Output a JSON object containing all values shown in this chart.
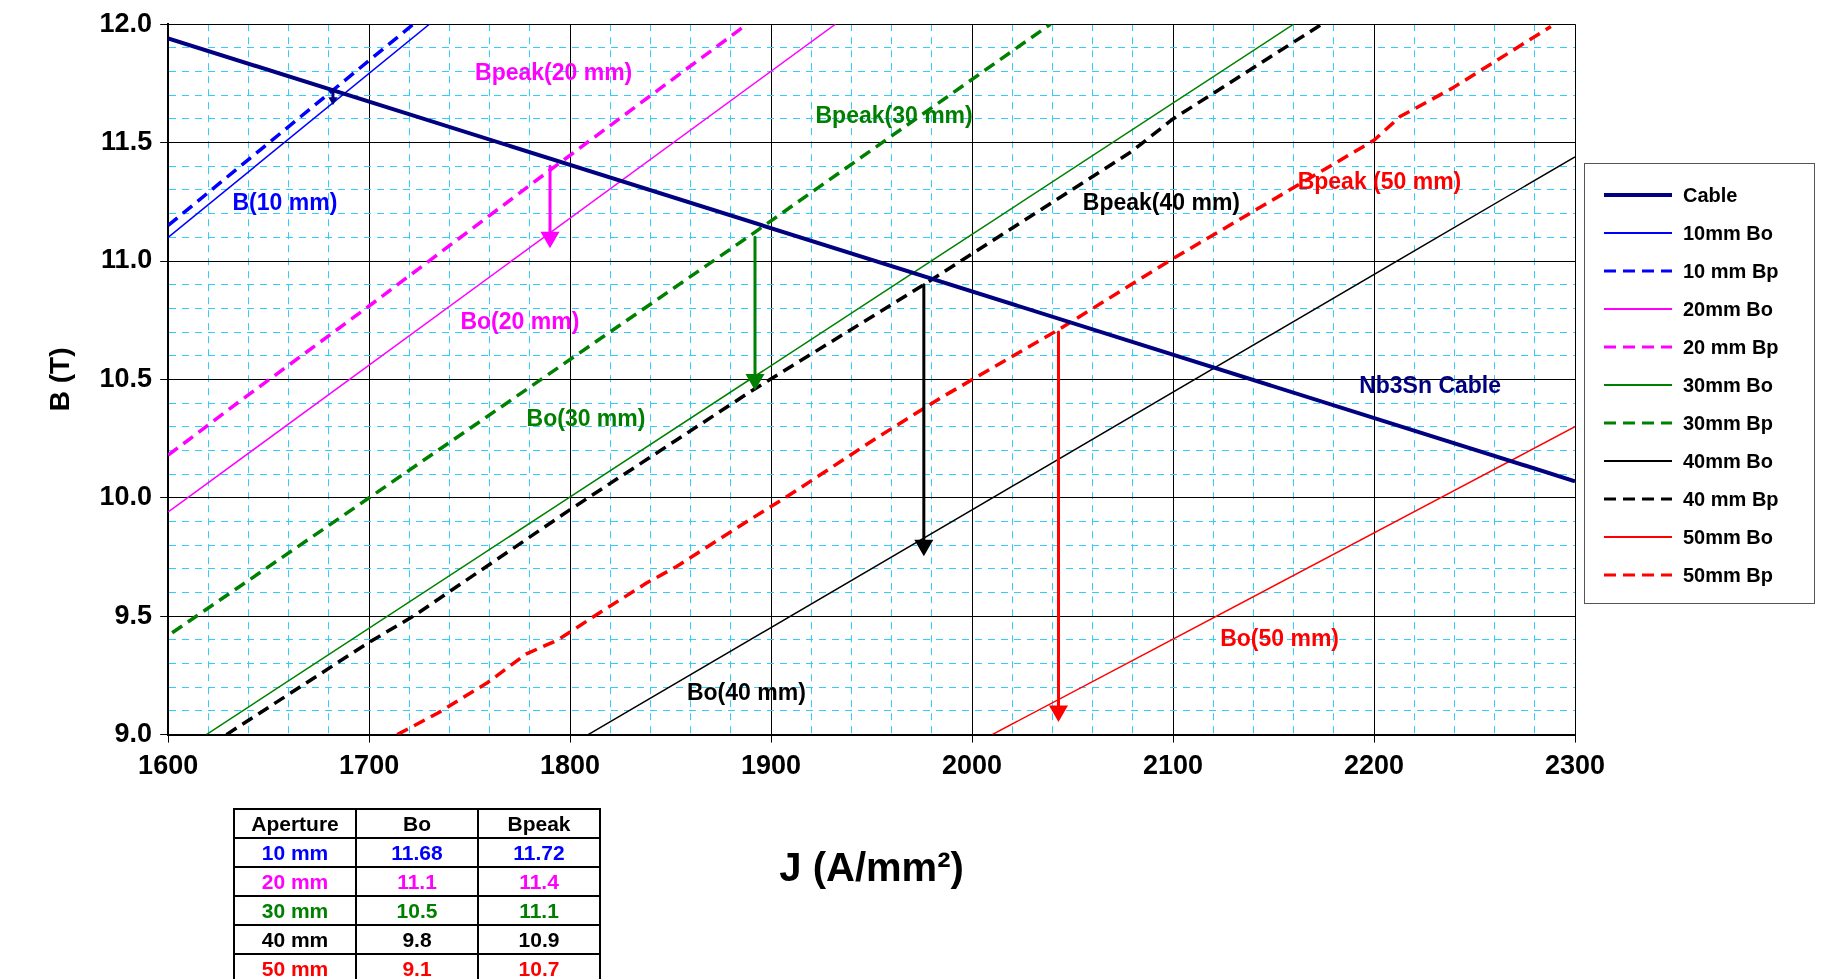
{
  "chart_data": {
    "type": "line",
    "xlabel": "J (A/mm²)",
    "ylabel": "B (T)",
    "legend": "right",
    "grid": true,
    "xlim": [
      1600,
      2300
    ],
    "xticks": [
      1600,
      {
        "value": 1620,
        "label": null
      },
      {
        "value": 1640,
        "label": null
      },
      {
        "value": 1660,
        "label": null
      },
      {
        "value": 1680,
        "label": null
      },
      1700,
      {
        "value": 1720,
        "label": null
      },
      {
        "value": 1740,
        "label": null
      },
      {
        "value": 1760,
        "label": null
      },
      {
        "value": 1780,
        "label": null
      },
      1800,
      {
        "value": 1820,
        "label": null
      },
      {
        "value": 1840,
        "label": null
      },
      {
        "value": 1860,
        "label": null
      },
      {
        "value": 1880,
        "label": null
      },
      1900,
      {
        "value": 1920,
        "label": null
      },
      {
        "value": 1940,
        "label": null
      },
      {
        "value": 1960,
        "label": null
      },
      {
        "value": 1980,
        "label": null
      },
      2000,
      {
        "value": 2020,
        "label": null
      },
      {
        "value": 2040,
        "label": null
      },
      {
        "value": 2060,
        "label": null
      },
      {
        "value": 2080,
        "label": null
      },
      2100,
      {
        "value": 2120,
        "label": null
      },
      {
        "value": 2140,
        "label": null
      },
      {
        "value": 2160,
        "label": null
      },
      {
        "value": 2180,
        "label": null
      },
      2200,
      {
        "value": 2220,
        "label": null
      },
      {
        "value": 2240,
        "label": null
      },
      {
        "value": 2260,
        "label": null
      },
      {
        "value": 2280,
        "label": null
      },
      2300
    ],
    "ylim": [
      9,
      12
    ],
    "yticks": [
      {
        "value": 9,
        "label": "9.0"
      },
      {
        "value": 9.1,
        "label": null
      },
      {
        "value": 9.2,
        "label": null
      },
      {
        "value": 9.3,
        "label": null
      },
      {
        "value": 9.4,
        "label": null
      },
      {
        "value": 9.5,
        "label": "9.5"
      },
      {
        "value": 9.6,
        "label": null
      },
      {
        "value": 9.7,
        "label": null
      },
      {
        "value": 9.8,
        "label": null
      },
      {
        "value": 9.9,
        "label": null
      },
      {
        "value": 10,
        "label": "10.0"
      },
      {
        "value": 10.1,
        "label": null
      },
      {
        "value": 10.2,
        "label": null
      },
      {
        "value": 10.3,
        "label": null
      },
      {
        "value": 10.4,
        "label": null
      },
      {
        "value": 10.5,
        "label": "10.5"
      },
      {
        "value": 10.6,
        "label": null
      },
      {
        "value": 10.7,
        "label": null
      },
      {
        "value": 10.8,
        "label": null
      },
      {
        "value": 10.9,
        "label": null
      },
      {
        "value": 11,
        "label": "11.0"
      },
      {
        "value": 11.1,
        "label": null
      },
      {
        "value": 11.2,
        "label": null
      },
      {
        "value": 11.3,
        "label": null
      },
      {
        "value": 11.4,
        "label": null
      },
      {
        "value": 11.5,
        "label": "11.5"
      },
      {
        "value": 11.6,
        "label": null
      },
      {
        "value": 11.7,
        "label": null
      },
      {
        "value": 11.8,
        "label": null
      },
      {
        "value": 11.9,
        "label": null
      },
      {
        "value": 12,
        "label": "12.0"
      }
    ],
    "series": [
      {
        "name": "Cable",
        "color": "#000080",
        "x": [
          1600,
          2300
        ],
        "values": [
          11.94,
          10.07
        ]
      },
      {
        "name": "10mm Bo",
        "color": "#0000ff",
        "x": [
          1600,
          1730
        ],
        "values": [
          11.1,
          12
        ]
      },
      {
        "name": "10 mm Bp",
        "color": "#0000ff",
        "line_style": "dashed",
        "x": [
          1600,
          1722
        ],
        "values": [
          11.15,
          12
        ]
      },
      {
        "name": "20mm Bo",
        "color": "#ff00ff",
        "x": [
          1600,
          1932
        ],
        "values": [
          9.94,
          12
        ]
      },
      {
        "name": "20 mm Bp",
        "color": "#ff00ff",
        "line_style": "dashed",
        "x": [
          1600,
          1636,
          1700,
          1791,
          1888
        ],
        "values": [
          10.18,
          10.41,
          10.81,
          11.39,
          12
        ]
      },
      {
        "name": "30mm Bo",
        "color": "#008000",
        "x": [
          1619,
          2160
        ],
        "values": [
          9,
          12
        ]
      },
      {
        "name": "30mm Bp",
        "color": "#008000",
        "line_style": "dashed",
        "x": [
          1602,
          1700,
          1890,
          2039
        ],
        "values": [
          9.43,
          10.0,
          11.11,
          12
        ]
      },
      {
        "name": "40mm Bo",
        "color": "#000000",
        "x": [
          1809,
          2300
        ],
        "values": [
          9,
          11.44
        ]
      },
      {
        "name": "40 mm Bp",
        "color": "#000000",
        "line_style": "dashed",
        "x": [
          1629,
          1700,
          1722,
          1800,
          1890,
          1976,
          2079,
          2100,
          2174
        ],
        "values": [
          9,
          9.39,
          9.5,
          9.95,
          10.45,
          10.9,
          11.46,
          11.6,
          12
        ]
      },
      {
        "name": "50mm Bo",
        "color": "#ff0000",
        "x": [
          2010,
          2300
        ],
        "values": [
          9,
          10.3
        ]
      },
      {
        "name": "50mm Bp",
        "color": "#ff0000",
        "line_style": "dashed",
        "x": [
          1714,
          1734,
          1759,
          1778,
          1794,
          1812,
          1838,
          1853,
          1888,
          1907,
          1952,
          1984,
          2043,
          2100,
          2200,
          2213,
          2239,
          2288
        ],
        "values": [
          9,
          9.09,
          9.22,
          9.34,
          9.4,
          9.5,
          9.64,
          9.71,
          9.9,
          10.0,
          10.25,
          10.42,
          10.71,
          11.01,
          11.51,
          11.61,
          11.73,
          11.99
        ]
      },
      {
        "color": "#000080",
        "marker": "triangle",
        "x": [
          1682,
          1682
        ],
        "values": [
          11.72,
          11.68
        ]
      },
      {
        "color": "#ff00ff",
        "marker": "triangle",
        "x": [
          1790,
          1790
        ],
        "values": [
          11.4,
          11.1
        ]
      },
      {
        "color": "#008000",
        "marker": "triangle",
        "x": [
          1892,
          1892
        ],
        "values": [
          11.1,
          10.5
        ]
      },
      {
        "color": "#000000",
        "marker": "triangle",
        "x": [
          1976,
          1976
        ],
        "values": [
          10.9,
          9.8
        ]
      },
      {
        "color": "#ff0000",
        "marker": "triangle",
        "x": [
          2043,
          2043
        ],
        "values": [
          10.7,
          9.1
        ]
      }
    ],
    "annotations": [
      "Nb3Sn Cable",
      "B(10 mm)",
      "Bpeak(20 mm)",
      "Bo(20 mm)",
      "Bpeak(30 mm)",
      "Bo(30 mm)",
      "Bpeak(40 mm)",
      "Bo(40 mm)",
      "Bpeak (50 mm)",
      "Bo(50 mm)",
      "Aperture",
      "Bo",
      "Bpeak",
      "10 mm",
      "11.68",
      "11.72",
      "20 mm",
      "11.1",
      "11.4",
      "30 mm",
      "10.5",
      "11.1",
      "40 mm",
      "9.8",
      "10.9",
      "50 mm",
      "9.1",
      "10.7"
    ]
  }
}
